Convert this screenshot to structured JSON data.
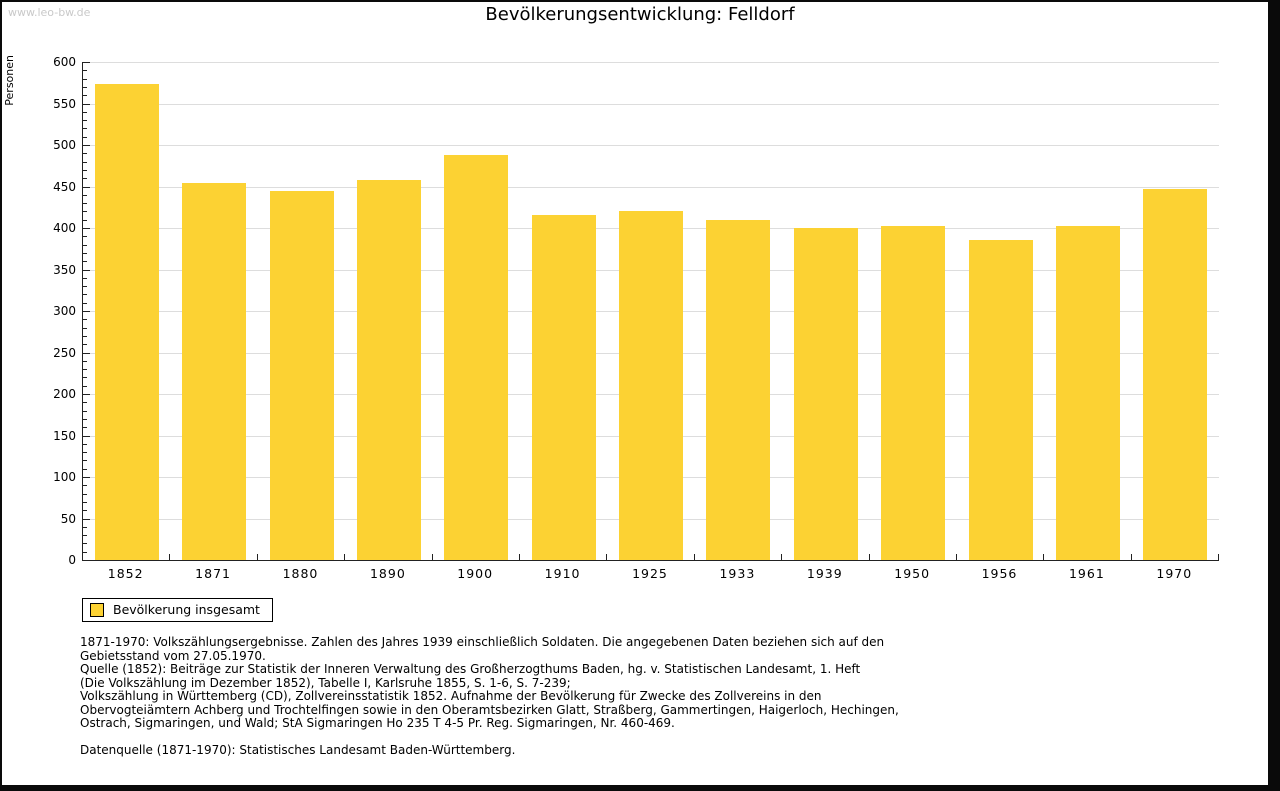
{
  "page": {
    "watermark": "www.leo-bw.de"
  },
  "chart_data": {
    "type": "bar",
    "title": "Bevölkerungsentwicklung: Felldorf",
    "ylabel": "Personen",
    "xlabel": "",
    "categories": [
      "1852",
      "1871",
      "1880",
      "1890",
      "1900",
      "1910",
      "1925",
      "1933",
      "1939",
      "1950",
      "1956",
      "1961",
      "1970"
    ],
    "values": [
      574,
      454,
      445,
      458,
      488,
      416,
      421,
      410,
      400,
      402,
      385,
      403,
      447
    ],
    "ylim": [
      0,
      600
    ],
    "ytick_step": 50,
    "ytick_minor_step": 10,
    "grid": true,
    "bar_color": "#FCD233",
    "grid_color": "#dddddd",
    "axis_color": "#222222",
    "legend": {
      "label": "Bevölkerung insgesamt",
      "position": "bottom-left"
    }
  },
  "footnotes": {
    "lines": [
      "1871-1970: Volkszählungsergebnisse. Zahlen des Jahres 1939 einschließlich Soldaten. Die angegebenen Daten beziehen sich auf den",
      "Gebietsstand vom 27.05.1970.",
      "Quelle (1852): Beiträge zur Statistik der Inneren Verwaltung des Großherzogthums Baden, hg. v. Statistischen Landesamt, 1. Heft",
      "(Die Volkszählung im Dezember 1852), Tabelle I, Karlsruhe 1855, S. 1-6, S. 7-239;",
      "Volkszählung in Württemberg (CD), Zollvereinsstatistik 1852. Aufnahme der Bevölkerung für Zwecke des Zollvereins in den",
      "Obervogteiämtern Achberg und Trochtelfingen sowie in den Oberamtsbezirken Glatt, Straßberg, Gammertingen, Haigerloch, Hechingen,",
      "Ostrach, Sigmaringen, und Wald; StA Sigmaringen Ho 235 T 4-5 Pr. Reg. Sigmaringen, Nr. 460-469."
    ],
    "datasource": "Datenquelle (1871-1970): Statistisches Landesamt Baden-Württemberg."
  }
}
